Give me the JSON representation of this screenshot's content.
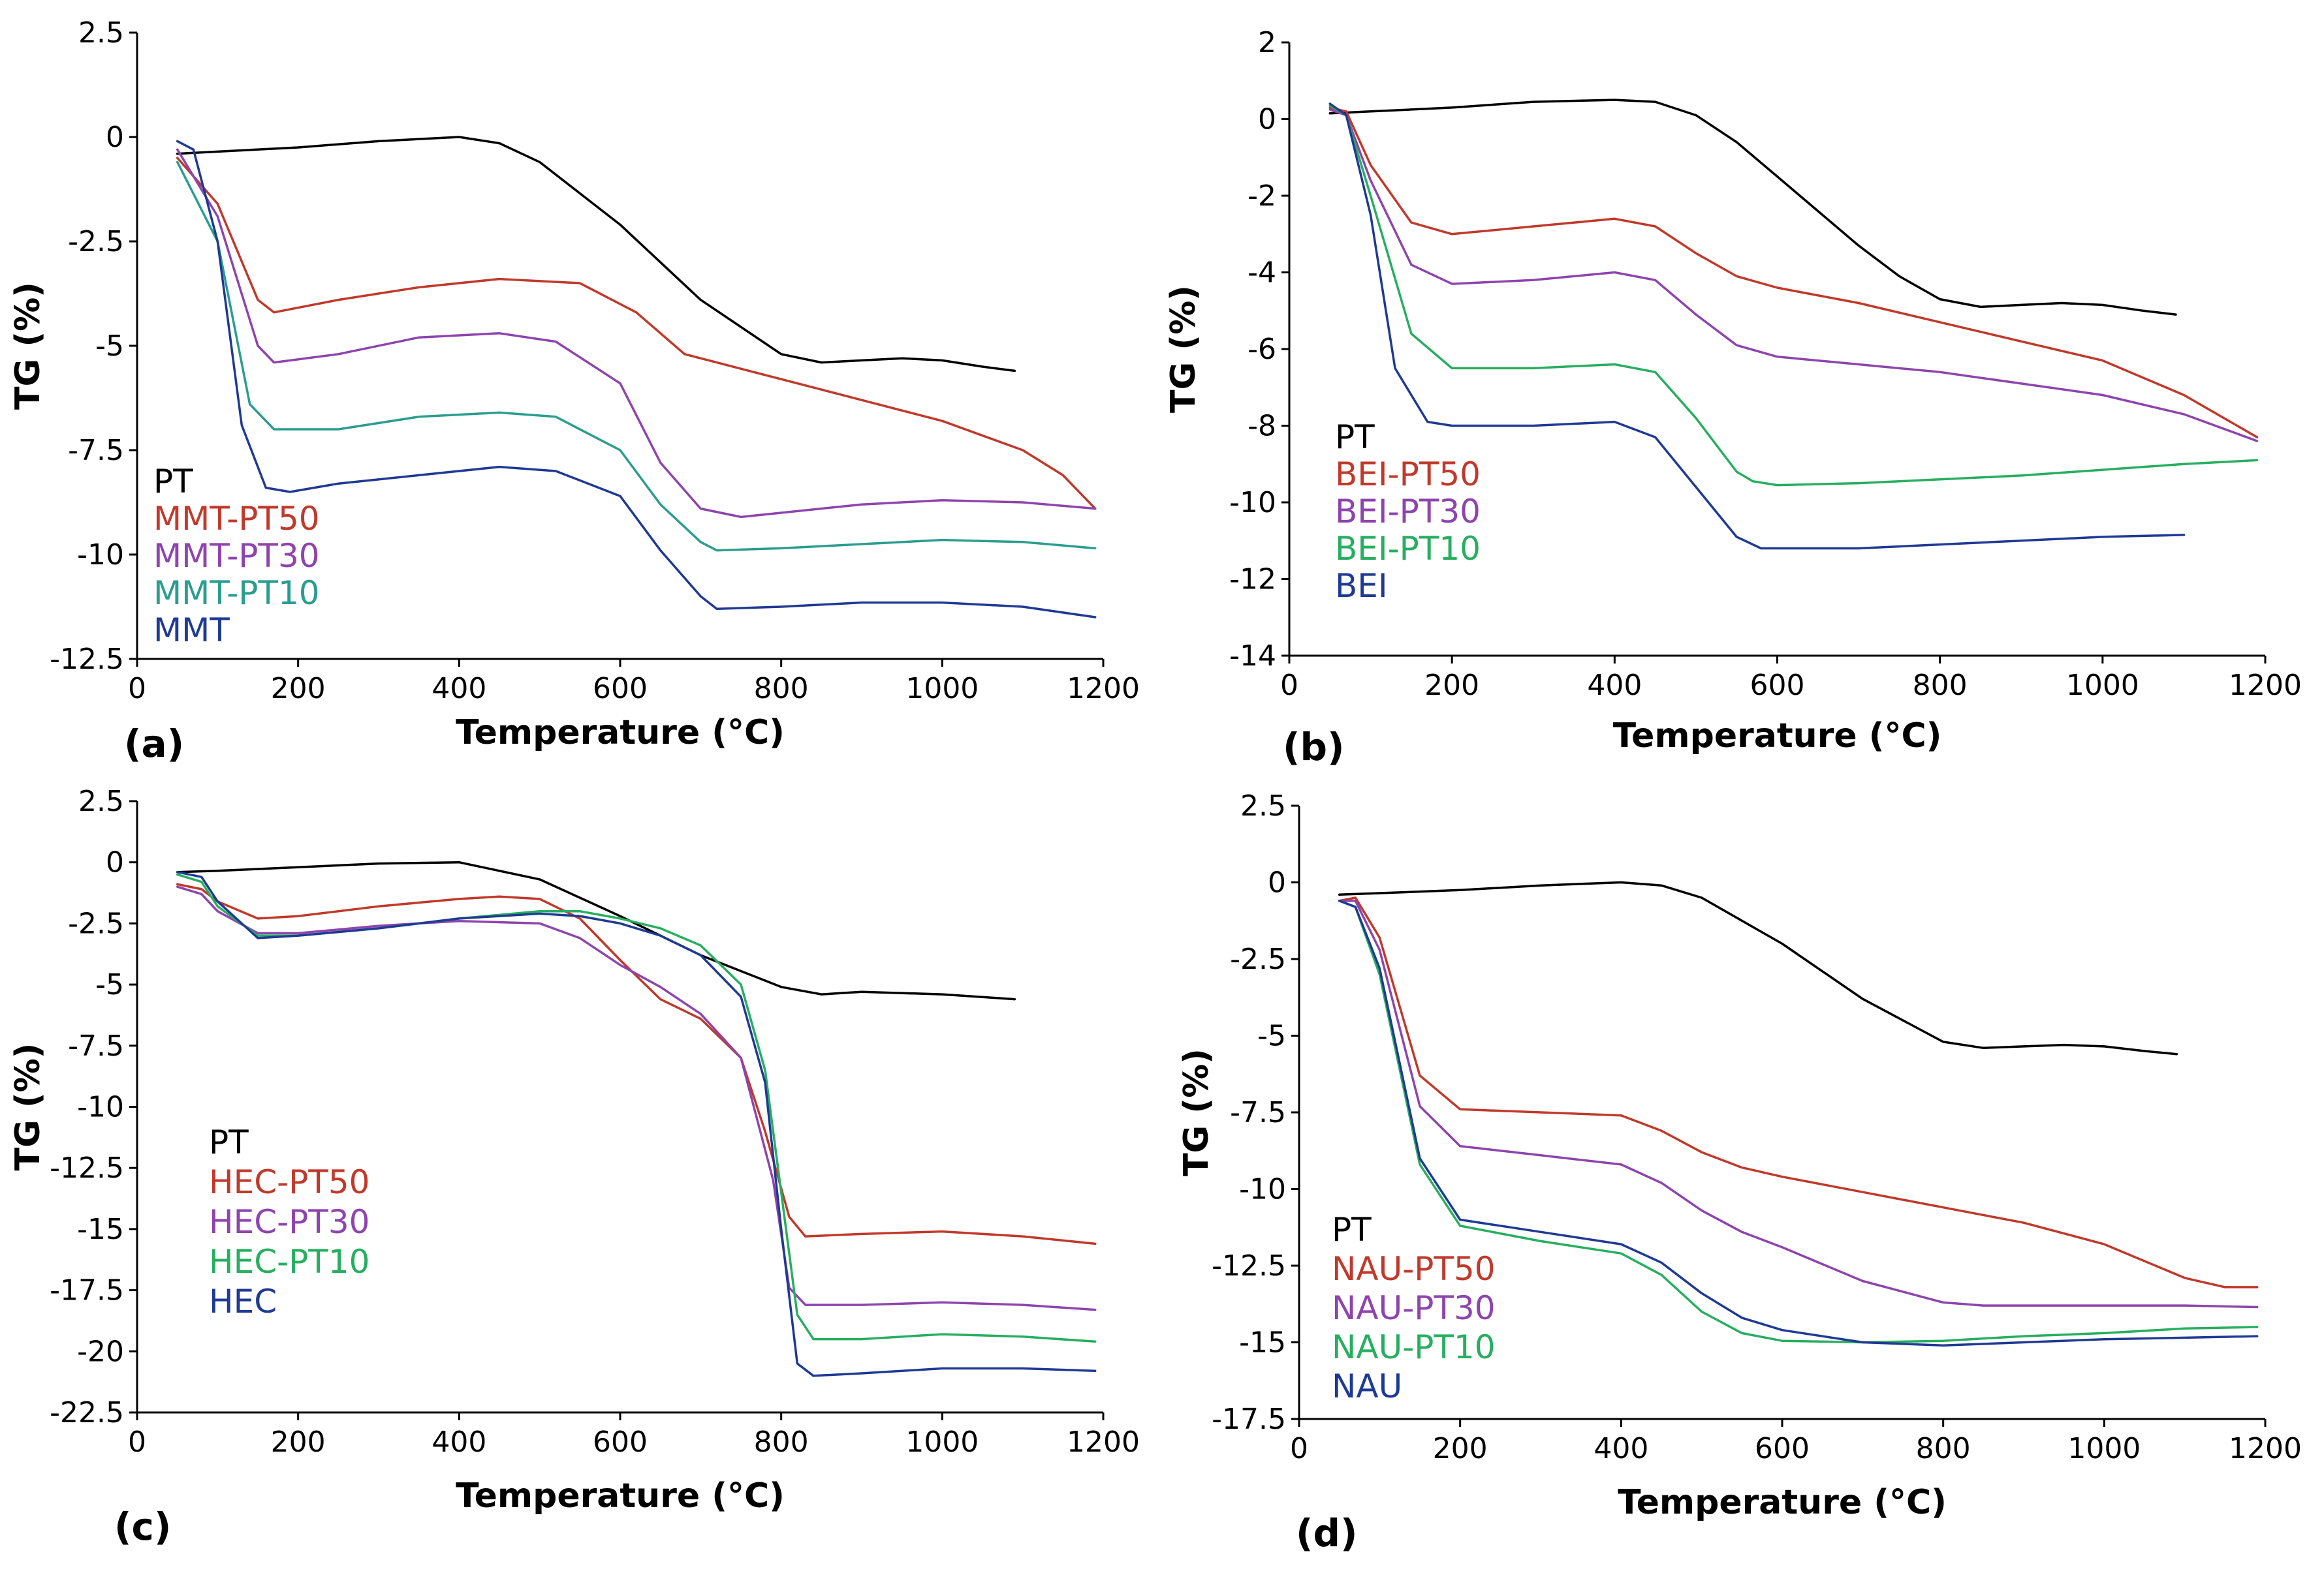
{
  "chart_data": [
    {
      "type": "line",
      "panel_label": "(a)",
      "xlabel": "Temperature (°C)",
      "ylabel": "TG (%)",
      "xlim": [
        0,
        1200
      ],
      "ylim": [
        -12.5,
        2.5
      ],
      "xticks": [
        0,
        200,
        400,
        600,
        800,
        1000,
        1200
      ],
      "xtick_labels": [
        "0",
        "200",
        "400",
        "600",
        "800",
        "1000",
        "1200"
      ],
      "yticks": [
        2.5,
        0,
        -2.5,
        -5,
        -7.5,
        -10,
        -12.5
      ],
      "ytick_labels": [
        "2.5",
        "0",
        "-2.5",
        "-5",
        "-7.5",
        "-10",
        "-12.5"
      ],
      "legend_position": "bottom-left",
      "series": [
        {
          "name": "PT",
          "color": "#000000",
          "x": [
            50,
            100,
            200,
            300,
            400,
            450,
            500,
            600,
            700,
            800,
            850,
            900,
            950,
            1000,
            1050,
            1090
          ],
          "y": [
            -0.4,
            -0.35,
            -0.25,
            -0.1,
            0,
            -0.15,
            -0.6,
            -2.1,
            -3.9,
            -5.2,
            -5.4,
            -5.35,
            -5.3,
            -5.35,
            -5.5,
            -5.6
          ]
        },
        {
          "name": "MMT-PT50",
          "color": "#c0392b",
          "x": [
            50,
            100,
            150,
            170,
            250,
            350,
            450,
            550,
            620,
            680,
            720,
            800,
            900,
            1000,
            1100,
            1150,
            1190
          ],
          "y": [
            -0.5,
            -1.6,
            -3.9,
            -4.2,
            -3.9,
            -3.6,
            -3.4,
            -3.5,
            -4.2,
            -5.2,
            -5.4,
            -5.8,
            -6.3,
            -6.8,
            -7.5,
            -8.1,
            -8.9
          ]
        },
        {
          "name": "MMT-PT30",
          "color": "#8e44ad",
          "x": [
            50,
            100,
            150,
            170,
            250,
            350,
            450,
            520,
            600,
            650,
            700,
            750,
            800,
            900,
            1000,
            1100,
            1190
          ],
          "y": [
            -0.3,
            -1.9,
            -5.0,
            -5.4,
            -5.2,
            -4.8,
            -4.7,
            -4.9,
            -5.9,
            -7.8,
            -8.9,
            -9.1,
            -9.0,
            -8.8,
            -8.7,
            -8.75,
            -8.9
          ]
        },
        {
          "name": "MMT-PT10",
          "color": "#2a9d8f",
          "x": [
            50,
            100,
            140,
            170,
            250,
            350,
            450,
            520,
            600,
            650,
            700,
            720,
            800,
            900,
            1000,
            1100,
            1190
          ],
          "y": [
            -0.6,
            -2.5,
            -6.4,
            -7.0,
            -7.0,
            -6.7,
            -6.6,
            -6.7,
            -7.5,
            -8.8,
            -9.7,
            -9.9,
            -9.85,
            -9.75,
            -9.65,
            -9.7,
            -9.85
          ]
        },
        {
          "name": "MMT",
          "color": "#1f3a93",
          "x": [
            50,
            70,
            100,
            130,
            160,
            190,
            250,
            350,
            450,
            520,
            600,
            650,
            700,
            720,
            800,
            900,
            1000,
            1100,
            1190
          ],
          "y": [
            -0.1,
            -0.3,
            -2.5,
            -6.9,
            -8.4,
            -8.5,
            -8.3,
            -8.1,
            -7.9,
            -8.0,
            -8.6,
            -9.9,
            -11.0,
            -11.3,
            -11.25,
            -11.15,
            -11.15,
            -11.25,
            -11.5
          ]
        }
      ]
    },
    {
      "type": "line",
      "panel_label": "(b)",
      "xlabel": "Temperature (°C)",
      "ylabel": "TG (%)",
      "xlim": [
        0,
        1200
      ],
      "ylim": [
        -14,
        2
      ],
      "xticks": [
        0,
        200,
        400,
        600,
        800,
        1000,
        1200
      ],
      "xtick_labels": [
        "0",
        "200",
        "400",
        "600",
        "800",
        "1000",
        "1200"
      ],
      "yticks": [
        2,
        0,
        -2,
        -4,
        -6,
        -8,
        -10,
        -12,
        -14
      ],
      "ytick_labels": [
        "2",
        "0",
        "-2",
        "-4",
        "-6",
        "-8",
        "-10",
        "-12",
        "-14"
      ],
      "legend_position": "bottom-left",
      "series": [
        {
          "name": "PT",
          "color": "#000000",
          "x": [
            50,
            100,
            200,
            300,
            400,
            450,
            500,
            550,
            600,
            650,
            700,
            750,
            800,
            850,
            900,
            950,
            1000,
            1050,
            1090
          ],
          "y": [
            0.15,
            0.2,
            0.3,
            0.45,
            0.5,
            0.45,
            0.1,
            -0.6,
            -1.5,
            -2.4,
            -3.3,
            -4.1,
            -4.7,
            -4.9,
            -4.85,
            -4.8,
            -4.85,
            -5.0,
            -5.1
          ]
        },
        {
          "name": "BEI-PT50",
          "color": "#c0392b",
          "x": [
            50,
            70,
            100,
            150,
            200,
            300,
            400,
            450,
            500,
            550,
            600,
            700,
            800,
            900,
            1000,
            1100,
            1190
          ],
          "y": [
            0.3,
            0.2,
            -1.2,
            -2.7,
            -3.0,
            -2.8,
            -2.6,
            -2.8,
            -3.5,
            -4.1,
            -4.4,
            -4.8,
            -5.3,
            -5.8,
            -6.3,
            -7.2,
            -8.3
          ]
        },
        {
          "name": "BEI-PT30",
          "color": "#8e44ad",
          "x": [
            50,
            70,
            100,
            150,
            200,
            300,
            400,
            450,
            500,
            550,
            600,
            700,
            800,
            900,
            1000,
            1100,
            1190
          ],
          "y": [
            0.25,
            0.1,
            -1.6,
            -3.8,
            -4.3,
            -4.2,
            -4.0,
            -4.2,
            -5.1,
            -5.9,
            -6.2,
            -6.4,
            -6.6,
            -6.9,
            -7.2,
            -7.7,
            -8.4
          ]
        },
        {
          "name": "BEI-PT10",
          "color": "#27ae60",
          "x": [
            50,
            70,
            100,
            150,
            200,
            300,
            400,
            450,
            500,
            550,
            570,
            600,
            700,
            800,
            900,
            1000,
            1100,
            1190
          ],
          "y": [
            0.35,
            0.1,
            -2.0,
            -5.6,
            -6.5,
            -6.5,
            -6.4,
            -6.6,
            -7.8,
            -9.2,
            -9.45,
            -9.55,
            -9.5,
            -9.4,
            -9.3,
            -9.15,
            -9.0,
            -8.9
          ]
        },
        {
          "name": "BEI",
          "color": "#1f3a93",
          "x": [
            50,
            70,
            100,
            130,
            170,
            200,
            300,
            400,
            450,
            500,
            550,
            580,
            600,
            700,
            800,
            900,
            1000,
            1100
          ],
          "y": [
            0.4,
            0.1,
            -2.5,
            -6.5,
            -7.9,
            -8.0,
            -8.0,
            -7.9,
            -8.3,
            -9.6,
            -10.9,
            -11.2,
            -11.2,
            -11.2,
            -11.1,
            -11.0,
            -10.9,
            -10.85
          ]
        }
      ]
    },
    {
      "type": "line",
      "panel_label": "(c)",
      "xlabel": "Temperature (°C)",
      "ylabel": "TG (%)",
      "xlim": [
        0,
        1200
      ],
      "ylim": [
        -22.5,
        2.5
      ],
      "xticks": [
        0,
        200,
        400,
        600,
        800,
        1000,
        1200
      ],
      "xtick_labels": [
        "0",
        "200",
        "400",
        "600",
        "800",
        "1000",
        "1200"
      ],
      "yticks": [
        2.5,
        0,
        -2.5,
        -5,
        -7.5,
        -10,
        -12.5,
        -15,
        -17.5,
        -20,
        -22.5
      ],
      "ytick_labels": [
        "2.5",
        "0",
        "-2.5",
        "-5",
        "-7.5",
        "-10",
        "-12.5",
        "-15",
        "-17.5",
        "-20",
        "-22.5"
      ],
      "legend_position": "bottom-left",
      "series": [
        {
          "name": "PT",
          "color": "#000000",
          "x": [
            50,
            100,
            200,
            300,
            400,
            500,
            600,
            700,
            800,
            850,
            900,
            1000,
            1090
          ],
          "y": [
            -0.4,
            -0.35,
            -0.2,
            -0.05,
            0,
            -0.7,
            -2.2,
            -3.8,
            -5.1,
            -5.4,
            -5.3,
            -5.4,
            -5.6
          ]
        },
        {
          "name": "HEC-PT50",
          "color": "#c0392b",
          "x": [
            50,
            80,
            100,
            150,
            200,
            300,
            400,
            450,
            500,
            550,
            600,
            650,
            700,
            750,
            780,
            810,
            830,
            900,
            1000,
            1100,
            1190
          ],
          "y": [
            -0.9,
            -1.1,
            -1.6,
            -2.3,
            -2.2,
            -1.8,
            -1.5,
            -1.4,
            -1.5,
            -2.3,
            -4.0,
            -5.6,
            -6.4,
            -8.0,
            -11.0,
            -14.5,
            -15.3,
            -15.2,
            -15.1,
            -15.3,
            -15.6
          ]
        },
        {
          "name": "HEC-PT30",
          "color": "#8e44ad",
          "x": [
            50,
            80,
            100,
            150,
            200,
            300,
            400,
            500,
            550,
            600,
            650,
            700,
            750,
            790,
            810,
            830,
            900,
            1000,
            1100,
            1190
          ],
          "y": [
            -1.0,
            -1.3,
            -2.0,
            -2.9,
            -2.9,
            -2.6,
            -2.4,
            -2.5,
            -3.1,
            -4.2,
            -5.1,
            -6.2,
            -8.0,
            -13.0,
            -17.4,
            -18.1,
            -18.1,
            -18.0,
            -18.1,
            -18.3
          ]
        },
        {
          "name": "HEC-PT10",
          "color": "#27ae60",
          "x": [
            50,
            80,
            100,
            150,
            200,
            300,
            400,
            500,
            550,
            600,
            650,
            700,
            750,
            780,
            800,
            820,
            840,
            900,
            1000,
            1100,
            1190
          ],
          "y": [
            -0.5,
            -0.8,
            -1.8,
            -3.0,
            -3.0,
            -2.7,
            -2.3,
            -2.0,
            -2.0,
            -2.3,
            -2.7,
            -3.4,
            -5.0,
            -8.5,
            -13.5,
            -18.5,
            -19.5,
            -19.5,
            -19.3,
            -19.4,
            -19.6
          ]
        },
        {
          "name": "HEC",
          "color": "#1f3a93",
          "x": [
            50,
            80,
            100,
            150,
            200,
            300,
            400,
            500,
            550,
            600,
            650,
            700,
            750,
            780,
            800,
            820,
            840,
            900,
            1000,
            1100,
            1190
          ],
          "y": [
            -0.4,
            -0.6,
            -1.6,
            -3.1,
            -3.0,
            -2.7,
            -2.3,
            -2.1,
            -2.2,
            -2.5,
            -3.0,
            -3.8,
            -5.5,
            -9.0,
            -15.0,
            -20.5,
            -21.0,
            -20.9,
            -20.7,
            -20.7,
            -20.8
          ]
        }
      ]
    },
    {
      "type": "line",
      "panel_label": "(d)",
      "xlabel": "Temperature (°C)",
      "ylabel": "TG (%)",
      "xlim": [
        0,
        1200
      ],
      "ylim": [
        -17.5,
        2.5
      ],
      "xticks": [
        0,
        200,
        400,
        600,
        800,
        1000,
        1200
      ],
      "xtick_labels": [
        "0",
        "200",
        "400",
        "600",
        "800",
        "1000",
        "1200"
      ],
      "yticks": [
        2.5,
        0,
        -2.5,
        -5,
        -7.5,
        -10,
        -12.5,
        -15,
        -17.5
      ],
      "ytick_labels": [
        "2.5",
        "0",
        "-2.5",
        "-5",
        "-7.5",
        "-10",
        "-12.5",
        "-15",
        "-17.5"
      ],
      "legend_position": "bottom-left",
      "series": [
        {
          "name": "PT",
          "color": "#000000",
          "x": [
            50,
            100,
            200,
            300,
            400,
            450,
            500,
            600,
            700,
            800,
            850,
            900,
            950,
            1000,
            1050,
            1090
          ],
          "y": [
            -0.4,
            -0.35,
            -0.25,
            -0.1,
            0,
            -0.1,
            -0.5,
            -2.0,
            -3.8,
            -5.2,
            -5.4,
            -5.35,
            -5.3,
            -5.35,
            -5.5,
            -5.6
          ]
        },
        {
          "name": "NAU-PT50",
          "color": "#c0392b",
          "x": [
            50,
            70,
            100,
            150,
            200,
            300,
            400,
            450,
            500,
            550,
            600,
            700,
            800,
            900,
            1000,
            1100,
            1150,
            1190
          ],
          "y": [
            -0.6,
            -0.5,
            -1.8,
            -6.3,
            -7.4,
            -7.5,
            -7.6,
            -8.1,
            -8.8,
            -9.3,
            -9.6,
            -10.1,
            -10.6,
            -11.1,
            -11.8,
            -12.9,
            -13.2,
            -13.2
          ]
        },
        {
          "name": "NAU-PT30",
          "color": "#8e44ad",
          "x": [
            50,
            70,
            100,
            150,
            200,
            300,
            400,
            450,
            500,
            550,
            600,
            700,
            800,
            850,
            900,
            1000,
            1100,
            1190
          ],
          "y": [
            -0.6,
            -0.6,
            -2.2,
            -7.3,
            -8.6,
            -8.9,
            -9.2,
            -9.8,
            -10.7,
            -11.4,
            -11.9,
            -13.0,
            -13.7,
            -13.8,
            -13.8,
            -13.8,
            -13.8,
            -13.85
          ]
        },
        {
          "name": "NAU-PT10",
          "color": "#27ae60",
          "x": [
            50,
            70,
            100,
            150,
            200,
            300,
            400,
            450,
            500,
            550,
            600,
            700,
            800,
            900,
            1000,
            1100,
            1190
          ],
          "y": [
            -0.6,
            -0.8,
            -3.0,
            -9.2,
            -11.2,
            -11.7,
            -12.1,
            -12.8,
            -14.0,
            -14.7,
            -14.95,
            -15.0,
            -14.95,
            -14.8,
            -14.7,
            -14.55,
            -14.5
          ]
        },
        {
          "name": "NAU",
          "color": "#1f3a93",
          "x": [
            50,
            70,
            100,
            150,
            200,
            300,
            400,
            450,
            500,
            550,
            600,
            700,
            800,
            900,
            1000,
            1100,
            1190
          ],
          "y": [
            -0.6,
            -0.8,
            -2.8,
            -9.0,
            -11.0,
            -11.4,
            -11.8,
            -12.4,
            -13.4,
            -14.2,
            -14.6,
            -15.0,
            -15.1,
            -15.0,
            -14.9,
            -14.85,
            -14.8
          ]
        }
      ]
    }
  ]
}
